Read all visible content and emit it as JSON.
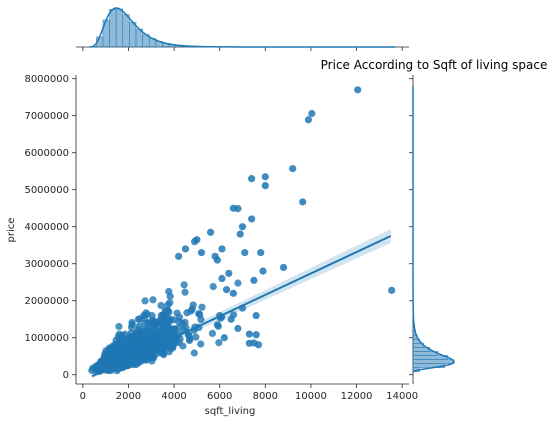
{
  "chart_data": {
    "type": "scatter",
    "title": "Price According to Sqft of living space",
    "xlabel": "sqft_living",
    "ylabel": "price",
    "xlim": [
      -300,
      14300
    ],
    "ylim": [
      -250000,
      8100000
    ],
    "x_ticks": [
      0,
      2000,
      4000,
      6000,
      8000,
      10000,
      12000,
      14000
    ],
    "x_tick_labels": [
      "0",
      "2000",
      "4000",
      "6000",
      "8000",
      "10000",
      "12000",
      "14000"
    ],
    "y_ticks": [
      0,
      1000000,
      2000000,
      3000000,
      4000000,
      5000000,
      6000000,
      7000000,
      8000000
    ],
    "y_tick_labels": [
      "0",
      "1000000",
      "2000000",
      "3000000",
      "4000000",
      "5000000",
      "6000000",
      "7000000",
      "8000000"
    ],
    "grid": false,
    "colors": {
      "points": "#1f77b4",
      "hist": "#1f77b4"
    },
    "regression": {
      "x": [
        400,
        13500
      ],
      "y": [
        -40000,
        3750000
      ]
    },
    "points": [
      {
        "x": 12050,
        "y": 7700000
      },
      {
        "x": 10040,
        "y": 7060000
      },
      {
        "x": 9890,
        "y": 6890000
      },
      {
        "x": 9200,
        "y": 5570000
      },
      {
        "x": 8000,
        "y": 5350000
      },
      {
        "x": 7400,
        "y": 5300000
      },
      {
        "x": 8000,
        "y": 5110000
      },
      {
        "x": 9640,
        "y": 4670000
      },
      {
        "x": 6600,
        "y": 4500000
      },
      {
        "x": 6800,
        "y": 4490000
      },
      {
        "x": 7400,
        "y": 4210000
      },
      {
        "x": 7000,
        "y": 4000000
      },
      {
        "x": 6900,
        "y": 3800000
      },
      {
        "x": 5600,
        "y": 3850000
      },
      {
        "x": 5000,
        "y": 3650000
      },
      {
        "x": 4900,
        "y": 3600000
      },
      {
        "x": 6100,
        "y": 3400000
      },
      {
        "x": 7100,
        "y": 3300000
      },
      {
        "x": 7800,
        "y": 3300000
      },
      {
        "x": 8800,
        "y": 2900000
      },
      {
        "x": 7500,
        "y": 2550000
      },
      {
        "x": 7900,
        "y": 2800000
      },
      {
        "x": 6400,
        "y": 2740000
      },
      {
        "x": 6100,
        "y": 2600000
      },
      {
        "x": 6600,
        "y": 2200000
      },
      {
        "x": 7000,
        "y": 1800000
      },
      {
        "x": 7600,
        "y": 1600000
      },
      {
        "x": 6800,
        "y": 1250000
      },
      {
        "x": 7300,
        "y": 1100000
      },
      {
        "x": 7300,
        "y": 850000
      },
      {
        "x": 7500,
        "y": 860000
      },
      {
        "x": 7700,
        "y": 810000
      },
      {
        "x": 7600,
        "y": 1080000
      },
      {
        "x": 13540,
        "y": 2280000
      },
      {
        "x": 5200,
        "y": 3300000
      },
      {
        "x": 4500,
        "y": 3400000
      },
      {
        "x": 5800,
        "y": 3200000
      },
      {
        "x": 4200,
        "y": 3200000
      },
      {
        "x": 5900,
        "y": 3100000
      },
      {
        "x": 6300,
        "y": 2300000
      },
      {
        "x": 6000,
        "y": 1600000
      },
      {
        "x": 6500,
        "y": 1500000
      },
      {
        "x": 5900,
        "y": 1350000
      },
      {
        "x": 6200,
        "y": 1000000
      }
    ],
    "cloud": {
      "note": "dense scatter mass rendered procedurally",
      "x_median": 1900,
      "y_per_sqft": 280
    }
  }
}
